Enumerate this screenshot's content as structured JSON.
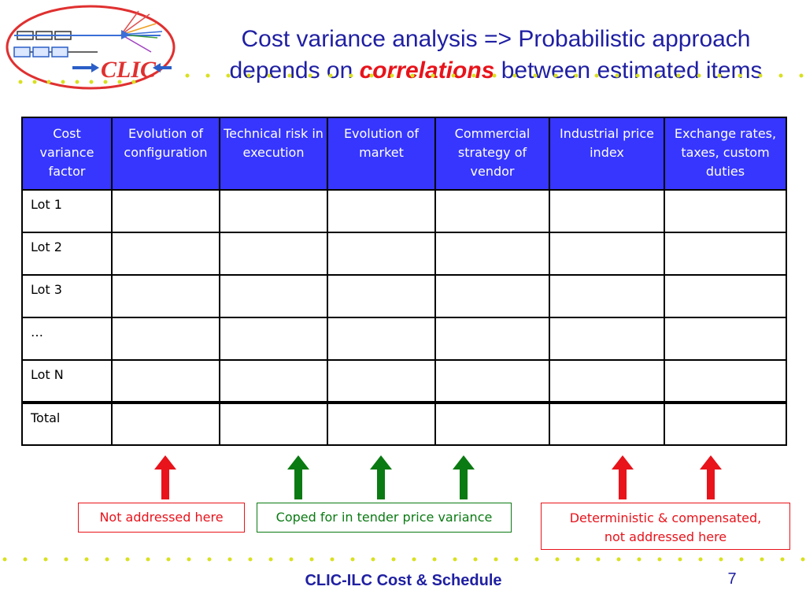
{
  "slide": {
    "title_line1": "Cost variance analysis => Probabilistic approach",
    "title_line2_pre": "depends on ",
    "title_line2_highlight": "correlations",
    "title_line2_post": " between estimated items",
    "logo_text": "CLIC"
  },
  "table": {
    "headers": [
      "Cost variance factor",
      "Evolution of configuration",
      "Technical risk in execution",
      "Evolution of market",
      "Commercial strategy of vendor",
      "Industrial price index",
      "Exchange rates, taxes, custom duties"
    ],
    "rows": [
      "Lot 1",
      "Lot 2",
      "Lot 3",
      "…",
      "Lot N",
      "Total"
    ]
  },
  "annotations": {
    "red_left": "Not addressed here",
    "green_middle": "Coped for in tender price variance",
    "red_right_line1": "Deterministic & compensated,",
    "red_right_line2": "not addressed here"
  },
  "colors": {
    "header_bg": "#3636ff",
    "title": "#1f1fa3",
    "highlight": "#e8131b",
    "red_arrow": "#e8131b",
    "green_arrow": "#0a7a12",
    "dots": "#d9e021"
  },
  "footer": {
    "text": "CLIC-ILC Cost & Schedule",
    "page_number": "7"
  }
}
